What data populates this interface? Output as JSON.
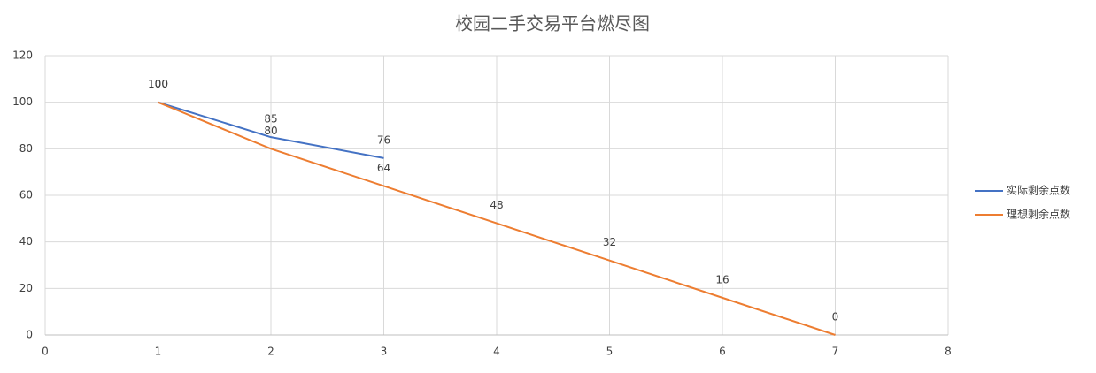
{
  "chart_data": {
    "type": "line",
    "title": "校园二手交易平台燃尽图",
    "xlim": [
      0,
      8
    ],
    "xticks": [
      0,
      1,
      2,
      3,
      4,
      5,
      6,
      7,
      8
    ],
    "ylim": [
      0,
      120
    ],
    "yticks": [
      0,
      20,
      40,
      60,
      80,
      100,
      120
    ],
    "grid": true,
    "legend": "right",
    "series": [
      {
        "name": "实际剩余点数",
        "color": "#4472c4",
        "x": [
          1,
          2,
          3
        ],
        "values": [
          100,
          85,
          76
        ]
      },
      {
        "name": "理想剩余点数",
        "color": "#ed7d31",
        "x": [
          1,
          2,
          3,
          4,
          5,
          6,
          7
        ],
        "values": [
          100,
          80,
          64,
          48,
          32,
          16,
          0
        ]
      }
    ]
  }
}
